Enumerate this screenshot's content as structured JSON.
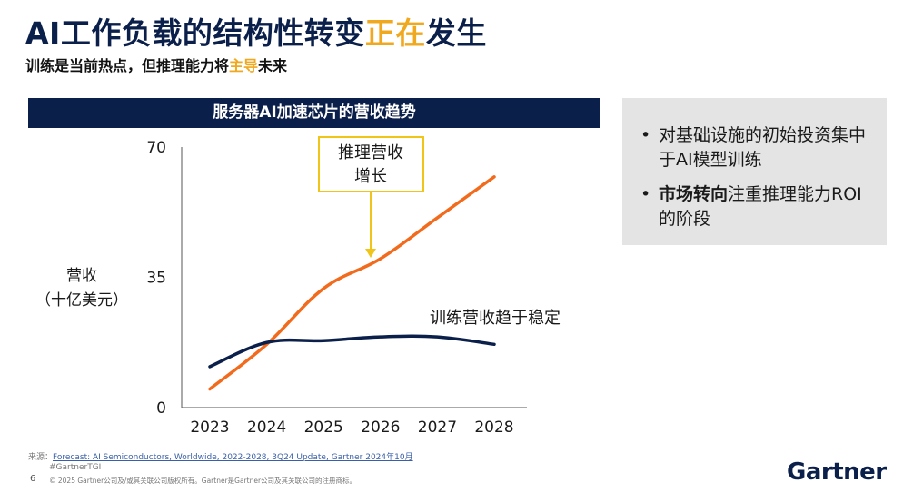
{
  "title": {
    "part1": "AI工作负载的结构性转变",
    "highlight": "正在",
    "part2": "发生"
  },
  "subtitle": {
    "part1": "训练是当前热点，但推理能力将",
    "highlight": "主导",
    "part2": "未来"
  },
  "colors": {
    "navy": "#0b1f4b",
    "accent": "#f0a81e",
    "inference_line": "#f26b1d",
    "training_line": "#0b1f4b"
  },
  "chart_data": {
    "type": "line",
    "title": "服务器AI加速芯片的营收趋势",
    "ylabel_line1": "营收",
    "ylabel_line2": "（十亿美元）",
    "xlabel": "",
    "ylim": [
      0,
      70
    ],
    "yticks": [
      0,
      35,
      70
    ],
    "x": [
      2023,
      2024,
      2025,
      2026,
      2027,
      2028
    ],
    "categories": [
      "2023",
      "2024",
      "2025",
      "2026",
      "2027",
      "2028"
    ],
    "series": [
      {
        "name": "推理营收",
        "values": [
          5,
          17,
          32,
          40,
          51,
          62
        ],
        "color": "#f26b1d"
      },
      {
        "name": "训练营收",
        "values": [
          11,
          17.5,
          18,
          19,
          19,
          17
        ],
        "color": "#0b1f4b"
      }
    ],
    "annotations": {
      "inference_line1": "推理营收",
      "inference_line2": "增长",
      "training": "训练营收趋于稳定"
    }
  },
  "side_box": {
    "items": [
      {
        "bold": "",
        "text": "对基础设施的初始投资集中于AI模型训练"
      },
      {
        "bold": "市场转向",
        "text": "注重推理能力ROI的阶段"
      }
    ]
  },
  "footer": {
    "source_label": "来源：",
    "source_link": "Forecast: AI Semiconductors, Worldwide, 2022-2028, 3Q24 Update, Gartner 2024年10月",
    "hashtag": "#GartnerTGI",
    "copyright": "© 2025 Gartner公司及/或其关联公司版权所有。Gartner是Gartner公司及其关联公司的注册商标。",
    "page_number": "6",
    "logo": "Gartner"
  }
}
